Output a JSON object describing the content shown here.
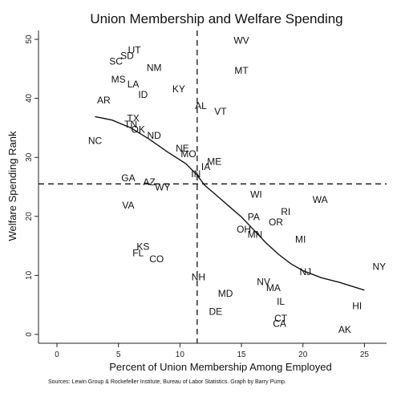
{
  "chart_data": {
    "type": "scatter",
    "title": "Union Membership and Welfare Spending",
    "xlabel": "Percent of Union Membership Among Employed",
    "ylabel": "Welfare Spending Rank",
    "source": "Sources: Lewin Group & Rockefeller Institute, Bureau of Labor Statistics. Graph by Barry Pump.",
    "xlim": [
      -1.5,
      26.8
    ],
    "ylim": [
      -1.5,
      51.5
    ],
    "xticks": [
      0,
      5,
      10,
      15,
      20,
      25
    ],
    "yticks": [
      0,
      10,
      20,
      30,
      40,
      50
    ],
    "reference_lines": {
      "x": 11.4,
      "y": 25.5
    },
    "points": [
      {
        "label": "WV",
        "x": 15.0,
        "y": 49.8
      },
      {
        "label": "UT",
        "x": 6.3,
        "y": 48.2
      },
      {
        "label": "SD",
        "x": 5.7,
        "y": 47.2
      },
      {
        "label": "SC",
        "x": 4.8,
        "y": 46.3
      },
      {
        "label": "NM",
        "x": 7.9,
        "y": 45.2
      },
      {
        "label": "MT",
        "x": 15.0,
        "y": 44.7
      },
      {
        "label": "MS",
        "x": 5.0,
        "y": 43.2
      },
      {
        "label": "LA",
        "x": 6.2,
        "y": 42.4
      },
      {
        "label": "KY",
        "x": 9.9,
        "y": 41.6
      },
      {
        "label": "ID",
        "x": 7.0,
        "y": 40.6
      },
      {
        "label": "AR",
        "x": 3.8,
        "y": 39.7
      },
      {
        "label": "AL",
        "x": 11.7,
        "y": 38.7
      },
      {
        "label": "VT",
        "x": 13.3,
        "y": 37.8
      },
      {
        "label": "TX",
        "x": 6.2,
        "y": 36.6
      },
      {
        "label": "TN",
        "x": 6.0,
        "y": 35.6
      },
      {
        "label": "OK",
        "x": 6.6,
        "y": 34.7
      },
      {
        "label": "ND",
        "x": 7.9,
        "y": 33.7
      },
      {
        "label": "NC",
        "x": 3.1,
        "y": 32.8
      },
      {
        "label": "NE",
        "x": 10.2,
        "y": 31.5
      },
      {
        "label": "MO",
        "x": 10.7,
        "y": 30.6
      },
      {
        "label": "ME",
        "x": 12.8,
        "y": 29.3
      },
      {
        "label": "IA",
        "x": 12.1,
        "y": 28.4
      },
      {
        "label": "IN",
        "x": 11.3,
        "y": 27.2
      },
      {
        "label": "GA",
        "x": 5.8,
        "y": 26.5
      },
      {
        "label": "AZ",
        "x": 7.5,
        "y": 25.8
      },
      {
        "label": "WY",
        "x": 8.6,
        "y": 24.9
      },
      {
        "label": "WI",
        "x": 16.2,
        "y": 23.7
      },
      {
        "label": "WA",
        "x": 21.4,
        "y": 22.8
      },
      {
        "label": "VA",
        "x": 5.8,
        "y": 21.9
      },
      {
        "label": "RI",
        "x": 18.6,
        "y": 20.8
      },
      {
        "label": "PA",
        "x": 16.0,
        "y": 19.9
      },
      {
        "label": "OR",
        "x": 17.8,
        "y": 19.0
      },
      {
        "label": "OH",
        "x": 15.2,
        "y": 17.8
      },
      {
        "label": "MN",
        "x": 16.1,
        "y": 16.9
      },
      {
        "label": "MI",
        "x": 19.8,
        "y": 16.1
      },
      {
        "label": "KS",
        "x": 7.0,
        "y": 14.9
      },
      {
        "label": "FL",
        "x": 6.6,
        "y": 13.8
      },
      {
        "label": "CO",
        "x": 8.1,
        "y": 12.8
      },
      {
        "label": "NY",
        "x": 26.2,
        "y": 11.5
      },
      {
        "label": "NJ",
        "x": 20.2,
        "y": 10.6
      },
      {
        "label": "NH",
        "x": 11.5,
        "y": 9.7
      },
      {
        "label": "NV",
        "x": 16.8,
        "y": 8.9
      },
      {
        "label": "MA",
        "x": 17.6,
        "y": 7.9
      },
      {
        "label": "MD",
        "x": 13.7,
        "y": 6.9
      },
      {
        "label": "IL",
        "x": 18.2,
        "y": 5.6
      },
      {
        "label": "HI",
        "x": 24.4,
        "y": 4.8
      },
      {
        "label": "DE",
        "x": 12.9,
        "y": 3.9
      },
      {
        "label": "CT",
        "x": 18.2,
        "y": 2.7
      },
      {
        "label": "CA",
        "x": 18.1,
        "y": 1.8
      },
      {
        "label": "AK",
        "x": 23.4,
        "y": 0.8
      }
    ],
    "trend_line": [
      {
        "x": 3.1,
        "y": 36.9
      },
      {
        "x": 4.5,
        "y": 36.3
      },
      {
        "x": 6.0,
        "y": 35.0
      },
      {
        "x": 7.5,
        "y": 33.1
      },
      {
        "x": 9.0,
        "y": 30.9
      },
      {
        "x": 10.5,
        "y": 28.9
      },
      {
        "x": 11.4,
        "y": 27.0
      },
      {
        "x": 12.0,
        "y": 25.3
      },
      {
        "x": 13.0,
        "y": 23.5
      },
      {
        "x": 14.0,
        "y": 21.7
      },
      {
        "x": 15.0,
        "y": 19.9
      },
      {
        "x": 16.0,
        "y": 17.7
      },
      {
        "x": 17.0,
        "y": 15.5
      },
      {
        "x": 18.0,
        "y": 13.6
      },
      {
        "x": 19.0,
        "y": 12.0
      },
      {
        "x": 20.0,
        "y": 10.8
      },
      {
        "x": 21.5,
        "y": 9.6
      },
      {
        "x": 23.0,
        "y": 8.8
      },
      {
        "x": 25.0,
        "y": 7.5
      }
    ]
  }
}
